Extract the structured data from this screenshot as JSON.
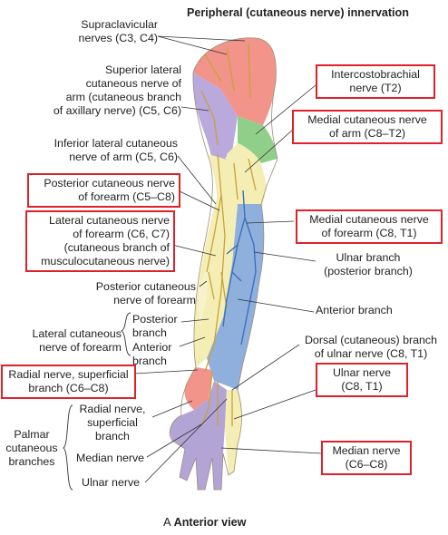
{
  "title": "Peripheral (cutaneous nerve) innervation",
  "caption_letter": "A",
  "caption_text": "Anterior view",
  "labels": {
    "supraclavicular": "Supraclavicular\nnerves (C3, C4)",
    "superior_lateral": "Superior lateral\ncutaneous nerve of\narm (cutaneous branch\nof axillary nerve) (C5, C6)",
    "inferior_lateral": "Inferior lateral cutaneous\nnerve of arm  (C5, C6)",
    "posterior_forearm_top": "Posterior cutaneous nerve\nof forearm (C5–C8)",
    "lateral_forearm": "Lateral cutaneous nerve\nof forearm (C6, C7)\n(cutaneous branch of\nmusculocutaneous nerve)",
    "posterior_forearm": "Posterior cutaneous\nnerve of forearm",
    "lateral_forearm_group": "Lateral cutaneous\nnerve of forearm",
    "posterior_branch": "Posterior\nbranch",
    "anterior_branch_left": "Anterior\nbranch",
    "radial_superficial": "Radial nerve, superficial\nbranch (C6–C8)",
    "palmar_cutaneous": "Palmar\ncutaneous\nbranches",
    "radial_superficial_branch": "Radial nerve,\nsuperficial\nbranch",
    "median_nerve_left": "Median nerve",
    "ulnar_nerve_left": "Ulnar nerve",
    "intercostobrachial": "Intercostobrachial\nnerve (T2)",
    "medial_arm": "Medial cutaneous nerve\nof arm (C8–T2)",
    "medial_forearm": "Medial cutaneous nerve\nof forearm (C8, T1)",
    "ulnar_branch": "Ulnar branch\n(posterior branch)",
    "anterior_branch_right": "Anterior branch",
    "dorsal_ulnar": "Dorsal (cutaneous) branch\nof ulnar nerve (C8, T1)",
    "ulnar_nerve_right": "Ulnar nerve\n(C8, T1)",
    "median_nerve_right": "Median nerve\n(C6–C8)"
  },
  "colors": {
    "supraclavicular": "#f2948a",
    "axillary": "#b9a9dc",
    "intercostobrachial": "#8fcf8a",
    "medial_arm": "#f4eeb4",
    "medial_forearm": "#8fb0dc",
    "lateral_forearm": "#f4eeb4",
    "radial": "#f2948a",
    "median": "#b3a4d6",
    "ulnar": "#f4eeb4",
    "nerve_line": "#c7a23a",
    "box": "#e0212b"
  }
}
